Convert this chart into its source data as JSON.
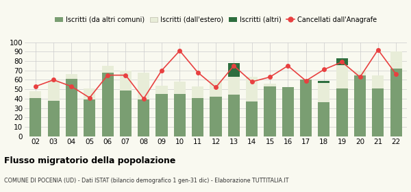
{
  "years": [
    "02",
    "03",
    "04",
    "05",
    "06",
    "07",
    "08",
    "09",
    "10",
    "11",
    "12",
    "13",
    "14",
    "15",
    "16",
    "17",
    "18",
    "19",
    "20",
    "21",
    "22"
  ],
  "iscritti_comuni": [
    41,
    38,
    61,
    39,
    68,
    49,
    39,
    45,
    45,
    41,
    42,
    44,
    37,
    53,
    52,
    60,
    36,
    51,
    65,
    51,
    72
  ],
  "iscritti_estero": [
    7,
    21,
    5,
    12,
    7,
    21,
    29,
    9,
    13,
    12,
    17,
    19,
    26,
    3,
    0,
    0,
    21,
    25,
    5,
    14,
    18
  ],
  "iscritti_altri": [
    0,
    0,
    0,
    0,
    0,
    0,
    0,
    0,
    0,
    0,
    0,
    15,
    0,
    0,
    0,
    0,
    2,
    7,
    0,
    0,
    0
  ],
  "cancellati": [
    53,
    60,
    53,
    41,
    65,
    65,
    40,
    70,
    91,
    68,
    52,
    75,
    58,
    63,
    75,
    59,
    71,
    79,
    63,
    92,
    66
  ],
  "bar_color_comuni": "#7a9e72",
  "bar_color_estero": "#e8edd8",
  "bar_color_altri": "#2d6e3e",
  "line_color": "#e84040",
  "line_marker": "o",
  "ylim": [
    0,
    100
  ],
  "yticks": [
    0,
    10,
    20,
    30,
    40,
    50,
    60,
    70,
    80,
    90,
    100
  ],
  "legend_labels": [
    "Iscritti (da altri comuni)",
    "Iscritti (dall'estero)",
    "Iscritti (altri)",
    "Cancellati dall'Anagrafe"
  ],
  "title": "Flusso migratorio della popolazione",
  "subtitle": "COMUNE DI POCENIA (UD) - Dati ISTAT (bilancio demografico 1 gen-31 dic) - Elaborazione TUTTITALIA.IT",
  "bg_color": "#f9f9f0",
  "grid_color": "#cccccc"
}
